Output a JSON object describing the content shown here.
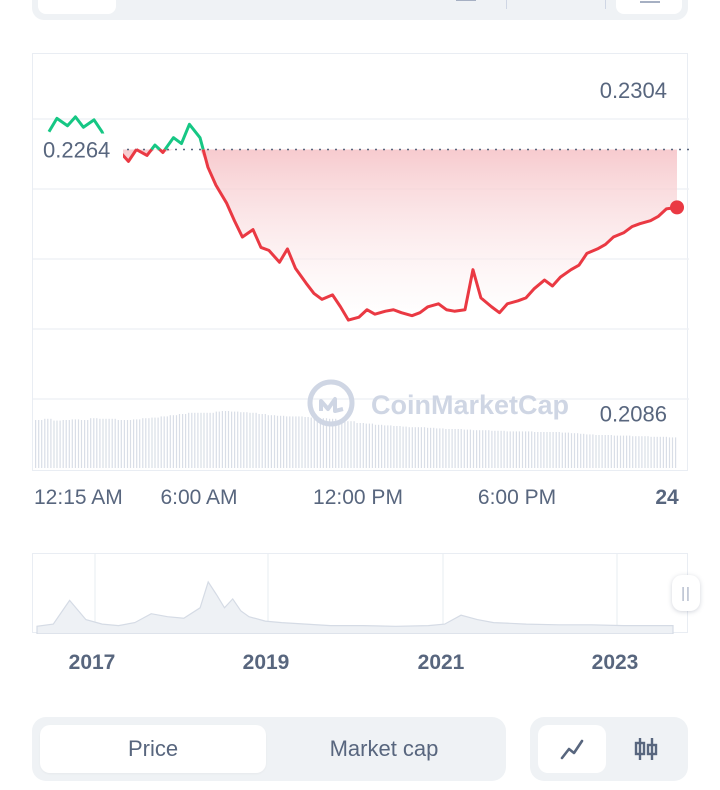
{
  "colors": {
    "up": "#16c784",
    "down": "#ea3943",
    "fill_top": "#f6c5c9",
    "fill_bottom": "#ffffff",
    "grid": "#eff2f5",
    "text": "#58667e",
    "volume": "#d9dee7",
    "watermark": "#cfd6e4"
  },
  "watermark": {
    "text": "CoinMarketCap",
    "icon": "coinmarketcap-logo-icon"
  },
  "chart_data": [
    {
      "type": "line",
      "title": "",
      "reference_value": 0.2264,
      "reference_label": "0.2264",
      "y_labels": [
        "0.2304",
        "0.2086"
      ],
      "ylim": [
        0.2052,
        0.2323
      ],
      "xlim": [
        0,
        24
      ],
      "x_tick_values": [
        0.25,
        6,
        12,
        18,
        24
      ],
      "x_tick_labels": [
        "12:15 AM",
        "6:00 AM",
        "12:00 PM",
        "6:00 PM",
        "24"
      ],
      "grid": true,
      "x": [
        0.3,
        0.6,
        1.0,
        1.3,
        1.6,
        2.0,
        2.3,
        2.7,
        3.0,
        3.3,
        3.6,
        4.0,
        4.3,
        4.6,
        5.0,
        5.3,
        5.6,
        6.0,
        6.3,
        6.6,
        7.0,
        7.3,
        7.6,
        8.0,
        8.3,
        8.6,
        9.0,
        9.3,
        9.6,
        10.0,
        10.3,
        10.6,
        11.0,
        11.3,
        11.6,
        12.0,
        12.3,
        12.6,
        13.0,
        13.3,
        13.6,
        14.0,
        14.3,
        14.6,
        15.0,
        15.3,
        15.6,
        16.0,
        16.3,
        16.6,
        17.0,
        17.3,
        17.6,
        18.0,
        18.3,
        18.6,
        19.0,
        19.3,
        19.6,
        20.0,
        20.3,
        20.6,
        21.0,
        21.3,
        21.6,
        22.0,
        22.3,
        22.6,
        23.0,
        23.3,
        23.6,
        24.0
      ],
      "values": [
        0.2276,
        0.2285,
        0.228,
        0.2286,
        0.2279,
        0.2284,
        0.2276,
        0.2259,
        0.2262,
        0.2256,
        0.2264,
        0.226,
        0.2267,
        0.2262,
        0.2272,
        0.2268,
        0.2281,
        0.2272,
        0.2252,
        0.224,
        0.2228,
        0.2216,
        0.2205,
        0.221,
        0.2198,
        0.2196,
        0.2188,
        0.2197,
        0.2184,
        0.2174,
        0.2167,
        0.2163,
        0.2166,
        0.2158,
        0.2149,
        0.2151,
        0.2156,
        0.2153,
        0.2155,
        0.2156,
        0.2154,
        0.2152,
        0.2154,
        0.2158,
        0.216,
        0.2156,
        0.2155,
        0.2156,
        0.2183,
        0.2164,
        0.2158,
        0.2154,
        0.216,
        0.2162,
        0.2164,
        0.217,
        0.2176,
        0.2172,
        0.2178,
        0.2183,
        0.2186,
        0.2194,
        0.2197,
        0.22,
        0.2205,
        0.2208,
        0.2212,
        0.2214,
        0.2216,
        0.2219,
        0.2224,
        0.2225
      ],
      "volume": [
        0.8,
        0.82,
        0.79,
        0.8,
        0.81,
        0.8,
        0.83,
        0.82,
        0.82,
        0.8,
        0.8,
        0.81,
        0.83,
        0.84,
        0.86,
        0.88,
        0.9,
        0.92,
        0.92,
        0.92,
        0.94,
        0.95,
        0.94,
        0.93,
        0.92,
        0.9,
        0.88,
        0.87,
        0.86,
        0.86,
        0.85,
        0.84,
        0.83,
        0.82,
        0.8,
        0.78,
        0.75,
        0.74,
        0.72,
        0.71,
        0.7,
        0.69,
        0.68,
        0.68,
        0.67,
        0.66,
        0.65,
        0.65,
        0.64,
        0.63,
        0.63,
        0.62,
        0.62,
        0.61,
        0.61,
        0.61,
        0.6,
        0.6,
        0.6,
        0.59,
        0.58,
        0.57,
        0.56,
        0.55,
        0.55,
        0.54,
        0.54,
        0.53,
        0.53,
        0.52,
        0.52,
        0.51
      ]
    },
    {
      "type": "area",
      "title": "",
      "x_tick_labels": [
        "2017",
        "2019",
        "2021",
        "2023"
      ],
      "x": [
        2016.0,
        2016.2,
        2016.4,
        2016.6,
        2016.8,
        2017.0,
        2017.2,
        2017.4,
        2017.6,
        2017.8,
        2018.0,
        2018.1,
        2018.2,
        2018.3,
        2018.4,
        2018.5,
        2018.6,
        2018.8,
        2019.0,
        2019.3,
        2019.6,
        2020.0,
        2020.4,
        2020.8,
        2021.0,
        2021.2,
        2021.4,
        2021.6,
        2021.8,
        2022.0,
        2022.4,
        2022.8,
        2023.2,
        2023.6,
        2023.8
      ],
      "values": [
        0.05,
        0.08,
        0.4,
        0.14,
        0.08,
        0.06,
        0.1,
        0.22,
        0.18,
        0.16,
        0.3,
        0.65,
        0.48,
        0.3,
        0.42,
        0.26,
        0.18,
        0.12,
        0.1,
        0.08,
        0.06,
        0.06,
        0.05,
        0.06,
        0.08,
        0.2,
        0.14,
        0.1,
        0.09,
        0.08,
        0.07,
        0.07,
        0.06,
        0.06,
        0.06
      ]
    }
  ],
  "segments": {
    "price_label": "Price",
    "marketcap_label": "Market cap",
    "active": "price"
  },
  "chart_types": {
    "line_icon": "line-chart-icon",
    "candle_icon": "candlestick-icon",
    "active": "line"
  }
}
